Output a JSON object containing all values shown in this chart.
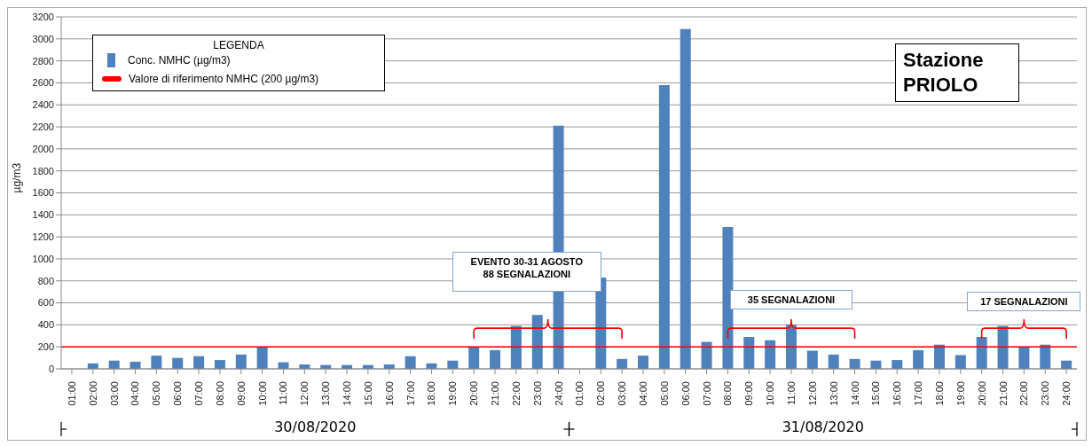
{
  "chart_data": {
    "type": "bar",
    "title": "Stazione PRIOLO",
    "ylabel": "µg/m3",
    "legend_title": "LEGENDA",
    "categories": [
      "01:00",
      "02:00",
      "03:00",
      "04:00",
      "05:00",
      "06:00",
      "07:00",
      "08:00",
      "09:00",
      "10:00",
      "11:00",
      "12:00",
      "13:00",
      "14:00",
      "15:00",
      "16:00",
      "17:00",
      "18:00",
      "19:00",
      "20:00",
      "21:00",
      "22:00",
      "23:00",
      "24:00",
      "01:00",
      "02:00",
      "03:00",
      "04:00",
      "05:00",
      "06:00",
      "07:00",
      "08:00",
      "09:00",
      "10:00",
      "11:00",
      "12:00",
      "13:00",
      "14:00",
      "15:00",
      "16:00",
      "17:00",
      "18:00",
      "19:00",
      "20:00",
      "21:00",
      "22:00",
      "23:00",
      "24:00"
    ],
    "series": [
      {
        "name": "Conc. NMHC (µg/m3)",
        "color": "#4f81bd",
        "values": [
          null,
          50,
          75,
          65,
          120,
          100,
          115,
          80,
          130,
          200,
          60,
          40,
          35,
          35,
          35,
          40,
          115,
          50,
          75,
          200,
          170,
          390,
          490,
          2210,
          null,
          830,
          90,
          120,
          2580,
          3090,
          245,
          1290,
          290,
          260,
          400,
          165,
          130,
          90,
          75,
          80,
          170,
          220,
          125,
          290,
          390,
          200,
          220,
          75
        ]
      }
    ],
    "ref_lines": [
      {
        "axis": "y",
        "value": 200,
        "label": "Valore di riferimento NMHC (200 µg/m3)",
        "color": "#ff0000"
      }
    ],
    "annotations": [
      "EVENTO 30-31 AGOSTO\n88 SEGNALAZIONI",
      "35 SEGNALAZIONI",
      "17 SEGNALAZIONI",
      "30/08/2020",
      "31/08/2020"
    ],
    "ylim": [
      0,
      3200
    ],
    "yticks": [
      0,
      200,
      400,
      600,
      800,
      1000,
      1200,
      1400,
      1600,
      1800,
      2000,
      2200,
      2400,
      2600,
      2800,
      3000,
      3200
    ],
    "grid": "y",
    "legend": "top left"
  }
}
